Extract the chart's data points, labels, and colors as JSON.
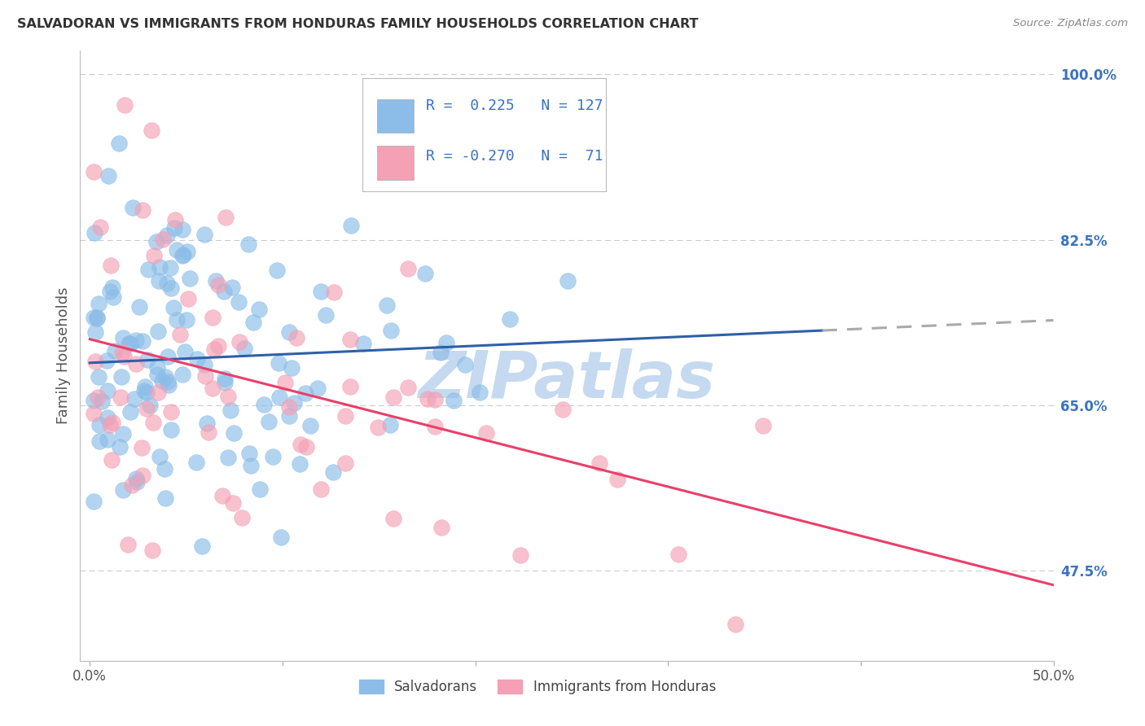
{
  "title": "SALVADORAN VS IMMIGRANTS FROM HONDURAS FAMILY HOUSEHOLDS CORRELATION CHART",
  "source": "Source: ZipAtlas.com",
  "ylabel": "Family Households",
  "x_min": 0.0,
  "x_max": 0.5,
  "y_min": 0.38,
  "y_max": 1.025,
  "y_ticks": [
    0.475,
    0.65,
    0.825,
    1.0
  ],
  "y_tick_labels": [
    "47.5%",
    "65.0%",
    "82.5%",
    "100.0%"
  ],
  "legend_R_blue": "0.225",
  "legend_N_blue": "127",
  "legend_R_pink": "-0.270",
  "legend_N_pink": "71",
  "legend_label_blue": "Salvadorans",
  "legend_label_pink": "Immigrants from Honduras",
  "blue_color": "#8BBDE8",
  "pink_color": "#F4A0B5",
  "blue_line_color": "#2F5FA8",
  "pink_line_color": "#E8406A",
  "gray_dash_color": "#AAAAAA",
  "title_color": "#333333",
  "right_tick_color": "#3A72C4",
  "grid_color": "#CCCCCC",
  "blue_intercept": 0.695,
  "blue_slope": 0.09,
  "pink_intercept": 0.72,
  "pink_slope": -0.52,
  "blue_line_solid_end": 0.38,
  "blue_line_x_end": 0.5,
  "pink_line_x_end": 0.5,
  "watermark_text": "ZIPatlas",
  "watermark_color": "#C5D9F0"
}
